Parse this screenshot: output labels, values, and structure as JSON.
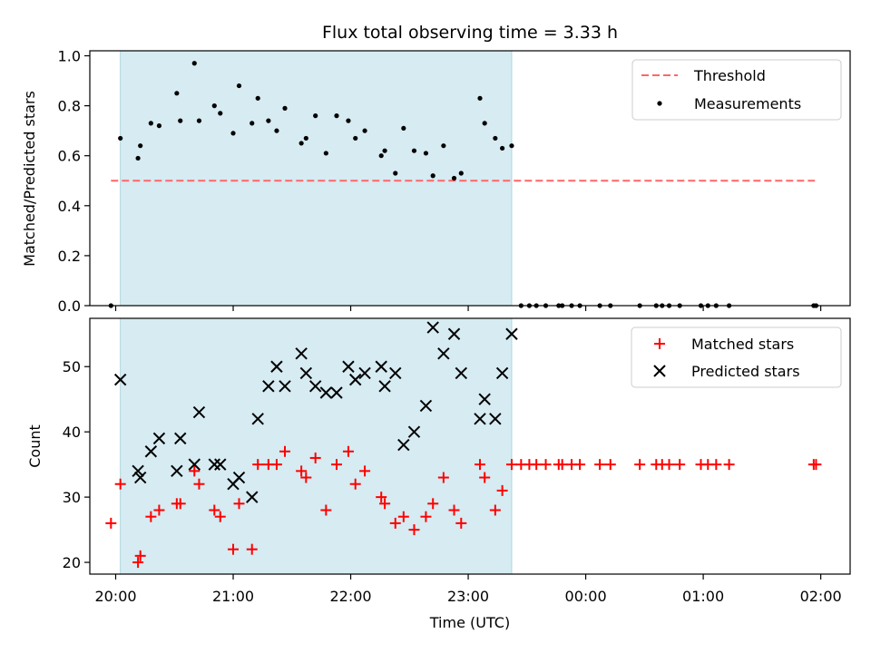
{
  "chart_data": {
    "title": "Flux total observing time = 3.33 h",
    "xlabel": "Time (UTC)",
    "x_tick_labels": [
      "20:00",
      "21:00",
      "22:00",
      "23:00",
      "00:00",
      "01:00",
      "02:00"
    ],
    "x_tick_hours": [
      20,
      21,
      22,
      23,
      24,
      25,
      26
    ],
    "xlim_hours": [
      19.78,
      26.25
    ],
    "observing_window_hours": [
      20.04,
      23.37
    ],
    "colors": {
      "window": "#add8e6",
      "threshold": "#ff6666",
      "matched": "#ff0000",
      "predicted": "#000000",
      "measurement": "#000000"
    },
    "panels": [
      {
        "type": "scatter",
        "ylabel": "Matched/Predicted stars",
        "ylim": [
          0,
          1.02
        ],
        "y_ticks": [
          0.0,
          0.2,
          0.4,
          0.6,
          0.8,
          1.0
        ],
        "y_tick_labels": [
          "0.0",
          "0.2",
          "0.4",
          "0.6",
          "0.8",
          "1.0"
        ],
        "legend_position": "top-right",
        "threshold": {
          "name": "Threshold",
          "value": 0.5,
          "x_range_hours": [
            19.96,
            25.95
          ]
        },
        "series": [
          {
            "name": "Measurements",
            "x_hours": [
              19.96,
              20.04,
              20.19,
              20.21,
              20.3,
              20.37,
              20.52,
              20.55,
              20.67,
              20.71,
              20.84,
              20.89,
              21.0,
              21.05,
              21.16,
              21.21,
              21.3,
              21.37,
              21.44,
              21.58,
              21.62,
              21.7,
              21.79,
              21.88,
              21.98,
              22.04,
              22.12,
              22.26,
              22.29,
              22.38,
              22.45,
              22.54,
              22.64,
              22.7,
              22.79,
              22.88,
              22.94,
              23.1,
              23.14,
              23.23,
              23.29,
              23.37,
              23.45,
              23.52,
              23.58,
              23.66,
              23.77,
              23.8,
              23.88,
              23.95,
              24.12,
              24.21,
              24.46,
              24.6,
              24.65,
              24.71,
              24.8,
              24.98,
              25.04,
              25.11,
              25.22,
              25.94,
              25.96
            ],
            "y": [
              0.0,
              0.67,
              0.59,
              0.64,
              0.73,
              0.72,
              0.85,
              0.74,
              0.97,
              0.74,
              0.8,
              0.77,
              0.69,
              0.88,
              0.73,
              0.83,
              0.74,
              0.7,
              0.79,
              0.65,
              0.67,
              0.76,
              0.61,
              0.76,
              0.74,
              0.67,
              0.7,
              0.6,
              0.62,
              0.53,
              0.71,
              0.62,
              0.61,
              0.52,
              0.64,
              0.51,
              0.53,
              0.83,
              0.73,
              0.67,
              0.63,
              0.64,
              0.0,
              0.0,
              0.0,
              0.0,
              0.0,
              0.0,
              0.0,
              0.0,
              0.0,
              0.0,
              0.0,
              0.0,
              0.0,
              0.0,
              0.0,
              0.0,
              0.0,
              0.0,
              0.0,
              0.0,
              0.0
            ]
          }
        ]
      },
      {
        "type": "scatter",
        "ylabel": "Count",
        "ylim": [
          18.2,
          57.4
        ],
        "y_ticks": [
          20,
          30,
          40,
          50
        ],
        "y_tick_labels": [
          "20",
          "30",
          "40",
          "50"
        ],
        "legend_position": "top-right",
        "series": [
          {
            "name": "Matched stars",
            "marker": "plus",
            "x_hours": [
              19.96,
              20.04,
              20.19,
              20.21,
              20.3,
              20.37,
              20.52,
              20.55,
              20.67,
              20.71,
              20.84,
              20.89,
              21.0,
              21.05,
              21.16,
              21.21,
              21.3,
              21.37,
              21.44,
              21.58,
              21.62,
              21.7,
              21.79,
              21.88,
              21.98,
              22.04,
              22.12,
              22.26,
              22.29,
              22.38,
              22.45,
              22.54,
              22.64,
              22.7,
              22.79,
              22.88,
              22.94,
              23.1,
              23.14,
              23.23,
              23.29,
              23.37,
              23.45,
              23.52,
              23.58,
              23.66,
              23.77,
              23.8,
              23.88,
              23.95,
              24.12,
              24.21,
              24.46,
              24.6,
              24.65,
              24.71,
              24.8,
              24.98,
              25.04,
              25.11,
              25.22,
              25.94,
              25.96
            ],
            "y": [
              26,
              32,
              20,
              21,
              27,
              28,
              29,
              29,
              34,
              32,
              28,
              27,
              22,
              29,
              22,
              35,
              35,
              35,
              37,
              34,
              33,
              36,
              28,
              35,
              37,
              32,
              34,
              30,
              29,
              26,
              27,
              25,
              27,
              29,
              33,
              28,
              26,
              35,
              33,
              28,
              31,
              35,
              35,
              35,
              35,
              35,
              35,
              35,
              35,
              35,
              35,
              35,
              35,
              35,
              35,
              35,
              35,
              35,
              35,
              35,
              35,
              35,
              35
            ]
          },
          {
            "name": "Predicted stars",
            "marker": "x",
            "x_hours": [
              20.04,
              20.19,
              20.21,
              20.3,
              20.37,
              20.52,
              20.55,
              20.67,
              20.71,
              20.84,
              20.89,
              21.0,
              21.05,
              21.16,
              21.21,
              21.3,
              21.37,
              21.44,
              21.58,
              21.62,
              21.7,
              21.79,
              21.88,
              21.98,
              22.04,
              22.12,
              22.26,
              22.29,
              22.38,
              22.45,
              22.54,
              22.64,
              22.7,
              22.79,
              22.88,
              22.94,
              23.1,
              23.14,
              23.23,
              23.29,
              23.37
            ],
            "y": [
              48,
              34,
              33,
              37,
              39,
              34,
              39,
              35,
              43,
              35,
              35,
              32,
              33,
              30,
              42,
              47,
              50,
              47,
              52,
              49,
              47,
              46,
              46,
              50,
              48,
              49,
              50,
              47,
              49,
              38,
              40,
              44,
              56,
              52,
              55,
              49,
              42,
              45,
              42,
              49,
              55
            ]
          }
        ]
      }
    ]
  }
}
